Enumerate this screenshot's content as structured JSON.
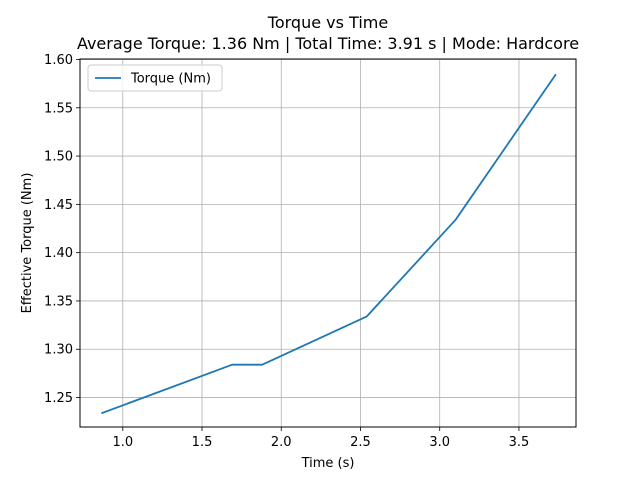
{
  "chart_data": {
    "type": "line",
    "title": "Torque vs Time",
    "subtitle": "Average Torque: 1.36 Nm | Total Time: 3.91 s | Mode: Hardcore",
    "xlabel": "Time (s)",
    "ylabel": "Effective Torque (Nm)",
    "xlim": [
      0.73,
      3.86
    ],
    "ylim": [
      1.2195,
      1.6005
    ],
    "xticks": [
      1.0,
      1.5,
      2.0,
      2.5,
      3.0,
      3.5
    ],
    "xtick_labels": [
      "1.0",
      "1.5",
      "2.0",
      "2.5",
      "3.0",
      "3.5"
    ],
    "yticks": [
      1.25,
      1.3,
      1.35,
      1.4,
      1.45,
      1.5,
      1.55,
      1.6
    ],
    "ytick_labels": [
      "1.25",
      "1.30",
      "1.35",
      "1.40",
      "1.45",
      "1.50",
      "1.55",
      "1.60"
    ],
    "grid": true,
    "legend_position": "top-left",
    "series": [
      {
        "name": "Torque (Nm)",
        "color": "#1f77b4",
        "x": [
          0.87,
          1.69,
          1.88,
          2.54,
          3.1,
          3.73
        ],
        "y": [
          1.234,
          1.284,
          1.284,
          1.334,
          1.434,
          1.584
        ]
      }
    ]
  }
}
